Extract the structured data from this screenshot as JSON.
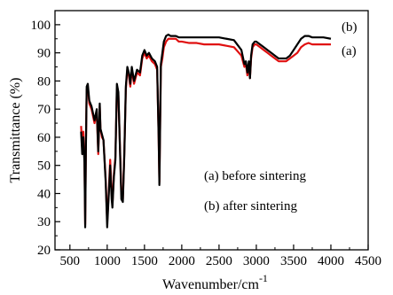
{
  "chart_data": {
    "type": "line",
    "xlabel": "Wavenumber/cm",
    "xlabel_superscript": "-1",
    "ylabel": "Transmittance (%)",
    "xlim": [
      300,
      4500
    ],
    "ylim": [
      20,
      105
    ],
    "xticks": [
      500,
      1000,
      1500,
      2000,
      2500,
      3000,
      3500,
      4000,
      4500
    ],
    "yticks": [
      20,
      30,
      40,
      50,
      60,
      70,
      80,
      90,
      100
    ],
    "grid": false,
    "annotations": [
      "(a) before sintering",
      "(b) after sintering"
    ],
    "series": [
      {
        "name": "(a)",
        "color": "#e01010",
        "x": [
          650,
          665,
          680,
          695,
          705,
          715,
          725,
          740,
          760,
          790,
          830,
          860,
          880,
          900,
          910,
          930,
          950,
          980,
          1000,
          1020,
          1040,
          1060,
          1070,
          1090,
          1110,
          1130,
          1150,
          1170,
          1190,
          1210,
          1230,
          1250,
          1270,
          1290,
          1310,
          1330,
          1360,
          1400,
          1440,
          1470,
          1500,
          1530,
          1560,
          1600,
          1640,
          1670,
          1690,
          1700,
          1710,
          1720,
          1740,
          1760,
          1790,
          1820,
          1850,
          1880,
          1920,
          1960,
          2000,
          2100,
          2200,
          2300,
          2400,
          2500,
          2600,
          2700,
          2800,
          2840,
          2860,
          2880,
          2900,
          2915,
          2930,
          2950,
          2980,
          3000,
          3050,
          3100,
          3150,
          3200,
          3250,
          3300,
          3350,
          3400,
          3450,
          3500,
          3550,
          3600,
          3650,
          3700,
          3750,
          3800,
          3850,
          3900,
          4000
        ],
        "y": [
          64,
          56,
          62,
          52,
          29,
          58,
          77,
          78,
          72,
          70,
          65,
          69,
          54,
          71,
          63,
          60,
          59,
          45,
          30,
          40,
          52,
          40,
          36,
          47,
          53,
          77,
          75,
          58,
          40,
          38,
          55,
          77,
          84,
          82,
          78,
          84,
          79,
          83,
          82,
          88,
          90,
          88,
          89,
          87,
          86,
          84,
          60,
          44,
          64,
          85,
          88,
          92,
          94,
          95,
          95,
          95,
          95,
          94,
          94,
          93.5,
          93.5,
          93,
          93,
          93,
          92.5,
          92,
          89,
          85,
          86,
          82,
          86,
          81,
          88,
          92,
          93,
          93,
          92,
          91,
          90,
          89,
          88,
          87,
          87,
          87,
          88,
          89,
          90,
          92,
          93,
          93.5,
          93,
          93,
          93,
          93,
          93
        ]
      },
      {
        "name": "(b)",
        "color": "#000000",
        "x": [
          650,
          665,
          680,
          695,
          705,
          715,
          725,
          740,
          760,
          790,
          830,
          860,
          880,
          900,
          910,
          930,
          950,
          980,
          1000,
          1020,
          1040,
          1060,
          1070,
          1090,
          1110,
          1130,
          1150,
          1170,
          1190,
          1210,
          1230,
          1250,
          1270,
          1290,
          1310,
          1330,
          1360,
          1400,
          1440,
          1470,
          1500,
          1530,
          1560,
          1600,
          1640,
          1670,
          1690,
          1700,
          1710,
          1720,
          1740,
          1760,
          1790,
          1820,
          1850,
          1880,
          1920,
          1960,
          2000,
          2100,
          2200,
          2300,
          2400,
          2500,
          2600,
          2700,
          2800,
          2840,
          2860,
          2880,
          2900,
          2915,
          2930,
          2950,
          2980,
          3000,
          3050,
          3100,
          3150,
          3200,
          3250,
          3300,
          3350,
          3400,
          3450,
          3500,
          3550,
          3600,
          3650,
          3700,
          3750,
          3800,
          3850,
          3900,
          4000
        ],
        "y": [
          62,
          54,
          60,
          51,
          28,
          57,
          78,
          79,
          73,
          71,
          66,
          70,
          55,
          72,
          63,
          61,
          59,
          44,
          28,
          39,
          50,
          38,
          35,
          46,
          52,
          79,
          76,
          57,
          38,
          37,
          54,
          78,
          85,
          83,
          79,
          85,
          80,
          84,
          83,
          89,
          91,
          89,
          90,
          88,
          87,
          85,
          60,
          43,
          65,
          86,
          90,
          94,
          96,
          96.5,
          96,
          96,
          96,
          95.5,
          95.5,
          95.5,
          95.5,
          95.5,
          95.5,
          95.5,
          95,
          94.5,
          91,
          86,
          87,
          83,
          87,
          81,
          89,
          93,
          94,
          94,
          93,
          92,
          91,
          90,
          89,
          88,
          88,
          88,
          89,
          91,
          93,
          95,
          96,
          96,
          95.5,
          95.5,
          95.5,
          95.5,
          95
        ]
      }
    ]
  }
}
